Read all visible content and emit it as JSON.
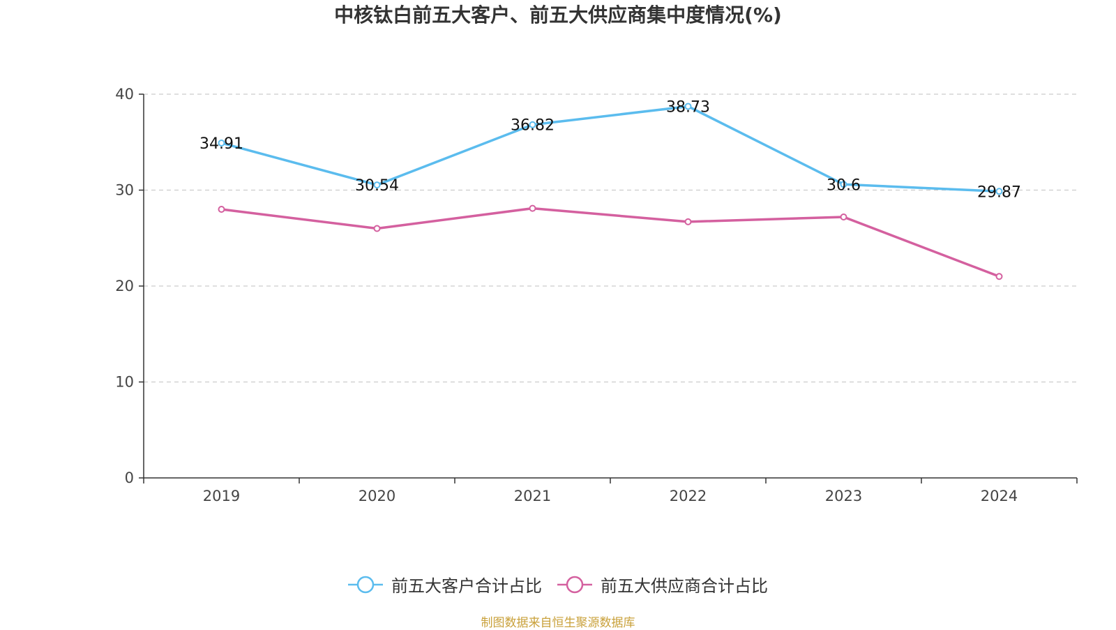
{
  "chart_data": {
    "type": "line",
    "title": "中核钛白前五大客户、前五大供应商集中度情况(%)",
    "categories": [
      "2019",
      "2020",
      "2021",
      "2022",
      "2023",
      "2024"
    ],
    "series": [
      {
        "name": "前五大客户合计占比",
        "color": "#5bbcee",
        "values": [
          34.91,
          30.54,
          36.82,
          38.73,
          30.6,
          29.87
        ],
        "labels": [
          "34.91",
          "30.54",
          "36.82",
          "38.73",
          "30.6",
          "29.87"
        ]
      },
      {
        "name": "前五大供应商合计占比",
        "color": "#d4609f",
        "values": [
          28.0,
          26.0,
          28.1,
          26.7,
          27.2,
          21.0
        ]
      }
    ],
    "yticks": [
      "0",
      "10",
      "20",
      "30",
      "40"
    ],
    "ylim": [
      0,
      40
    ],
    "grid": true,
    "legend_position": "bottom"
  },
  "source_note": "制图数据来自恒生聚源数据库"
}
